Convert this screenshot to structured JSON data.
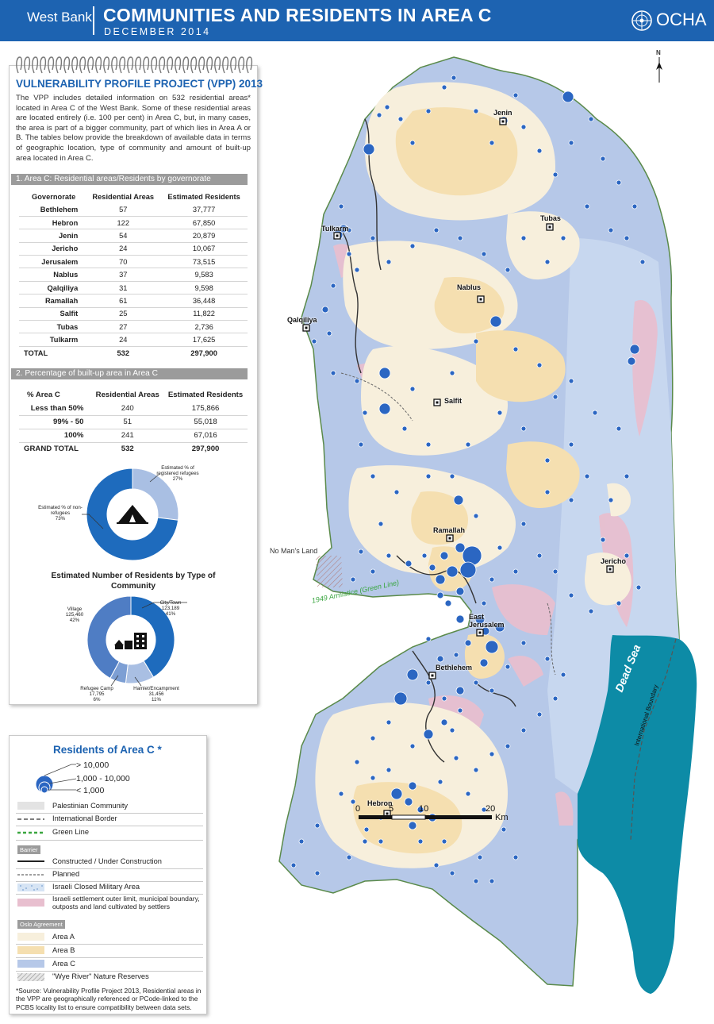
{
  "header": {
    "region": "West Bank",
    "title": "COMMUNITIES AND RESIDENTS IN AREA C",
    "date": "DECEMBER 2014",
    "org": "OCHA"
  },
  "vpp": {
    "title": "VULNERABILITY PROFILE PROJECT (VPP) 2013",
    "description": "The VPP includes detailed information on 532 residential areas* located in Area C of the West Bank. Some of these residential areas are located entirely (i.e. 100 per cent) in Area C, but, in many cases, the area is part of a bigger community, part of which lies in Area A or B. The tables below provide the breakdown of available data in terms of geographic location, type of community and amount of built-up area located in Area C."
  },
  "table1": {
    "title": "1. Area C: Residential areas/Residents by governorate",
    "columns": [
      "Governorate",
      "Residential Areas",
      "Estimated Residents"
    ],
    "rows": [
      [
        "Bethlehem",
        "57",
        "37,777"
      ],
      [
        "Hebron",
        "122",
        "67,850"
      ],
      [
        "Jenin",
        "54",
        "20,879"
      ],
      [
        "Jericho",
        "24",
        "10,067"
      ],
      [
        "Jerusalem",
        "70",
        "73,515"
      ],
      [
        "Nablus",
        "37",
        "9,583"
      ],
      [
        "Qalqiliya",
        "31",
        "9,598"
      ],
      [
        "Ramallah",
        "61",
        "36,448"
      ],
      [
        "Salfit",
        "25",
        "11,822"
      ],
      [
        "Tubas",
        "27",
        "2,736"
      ],
      [
        "Tulkarm",
        "24",
        "17,625"
      ]
    ],
    "total": [
      "TOTAL",
      "532",
      "297,900"
    ]
  },
  "table2": {
    "title": "2. Percentage of built-up area  in Area C",
    "columns": [
      "% Area C",
      "Residential Areas",
      "Estimated Residents"
    ],
    "rows": [
      [
        "Less than 50%",
        "240",
        "175,866"
      ],
      [
        "99% - 50",
        "51",
        "55,018"
      ],
      [
        "100%",
        "241",
        "67,016"
      ]
    ],
    "total": [
      "GRAND TOTAL",
      "532",
      "297,900"
    ]
  },
  "chart_data": [
    {
      "type": "pie",
      "title": "",
      "labels": [
        "Estimated % of registered refugees",
        "Estimated % of non-refugees"
      ],
      "values": [
        27,
        73
      ],
      "colors": [
        "#a9bfe3",
        "#1e6bbd"
      ]
    },
    {
      "type": "pie",
      "title": "Estimated Number of Residents by Type of Community",
      "labels": [
        "City/Town",
        "Hamlet/Encampment",
        "Refugee Camp",
        "Village"
      ],
      "values": [
        123189,
        31456,
        17795,
        125460
      ],
      "percent": [
        "41%",
        "11%",
        "6%",
        "42%"
      ],
      "colors": [
        "#1e6bbd",
        "#a9bfe3",
        "#7d9fd4",
        "#4f7dc4"
      ]
    }
  ],
  "pie1_labels": {
    "refugees": "Estimated % of registered refugees",
    "refugees_pct": "27%",
    "nonref": "Estimated % of non-refugees",
    "nonref_pct": "73%"
  },
  "pie2_labels": {
    "title": "Estimated Number of Residents by Type of Community",
    "city": "City/Town",
    "city_val": "123,189",
    "city_pct": "41%",
    "village": "Village",
    "village_val": "125,460",
    "village_pct": "42%",
    "hamlet": "Hamlet/Encampment",
    "hamlet_val": "31,456",
    "hamlet_pct": "11%",
    "camp": "Refugee Camp",
    "camp_val": "17,795",
    "camp_pct": "6%"
  },
  "legend": {
    "title": "Residents of Area C *",
    "size_large": "> 10,000",
    "size_medium": "1,000 - 10,000",
    "size_small": "< 1,000",
    "palestinian_community": "Palestinian Community",
    "international_border": "International Border",
    "green_line": "Green Line",
    "barrier_group": "Barrier",
    "barrier_built": "Constructed / Under Construction",
    "barrier_planned": "Planned",
    "military_area": "Israeli Closed Military Area",
    "settlement": "Israeli settlement outer limit, municipal boundary, outposts and land cultivated by settlers",
    "oslo_group": "Oslo Agreement",
    "area_a": "Area A",
    "area_b": "Area B",
    "area_c": "Area C",
    "wye_river": "\"Wye River\" Nature Reserves",
    "colors": {
      "area_a": "#f7efdc",
      "area_b": "#f5dfb0",
      "area_c": "#b6c8e8",
      "settlement": "#e8bfcf",
      "community": "#e3e3e3",
      "circle": "#2b66c2"
    }
  },
  "source": "*Source:  Vulnerability Profile Project 2013, Residential areas in the VPP are geographically referenced or PCode-linked to the PCBS locality list to ensure compatibility between data sets.",
  "map": {
    "cities": {
      "jenin": "Jenin",
      "tubas": "Tubas",
      "tulkarm": "Tulkarm",
      "nablus": "Nablus",
      "qalqiliya": "Qalqiliya",
      "salfit": "Salfit",
      "ramallah": "Ramallah",
      "jericho": "Jericho",
      "east_jerusalem_1": "East",
      "east_jerusalem_2": "Jerusalem",
      "bethlehem": "Bethlehem",
      "hebron": "Hebron"
    },
    "no_mans_land": "No Man's Land",
    "armistice": "1949 Armistice (Green Line)",
    "dead_sea": "Dead Sea",
    "intl_boundary": "International Boundary",
    "scale": [
      "0",
      "5",
      "10",
      "20"
    ],
    "scale_unit": "Km",
    "north": "N"
  }
}
